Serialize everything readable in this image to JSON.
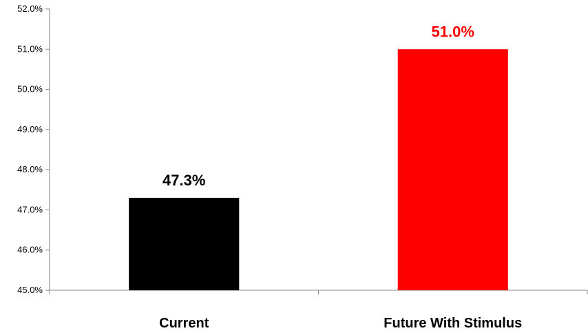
{
  "chart_data": {
    "type": "bar",
    "title": "",
    "xlabel": "",
    "ylabel": "",
    "categories": [
      "Current",
      "Future With Stimulus"
    ],
    "values": [
      47.3,
      51.0
    ],
    "value_labels": [
      "47.3%",
      "51.0%"
    ],
    "bar_colors": [
      "#000000",
      "#ff0000"
    ],
    "value_label_colors": [
      "#000000",
      "#ff0000"
    ],
    "ylim": [
      45.0,
      52.0
    ],
    "yticks": [
      45.0,
      46.0,
      47.0,
      48.0,
      49.0,
      50.0,
      51.0,
      52.0
    ],
    "ytick_labels": [
      "45.0%",
      "46.0%",
      "47.0%",
      "48.0%",
      "49.0%",
      "50.0%",
      "51.0%",
      "52.0%"
    ],
    "grid": false,
    "legend": "none"
  }
}
